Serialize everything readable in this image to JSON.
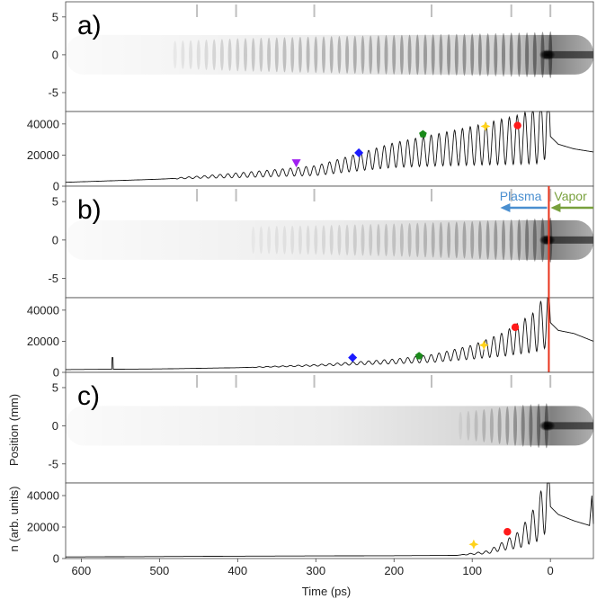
{
  "chart_data": {
    "type": "line",
    "x_label": "Time (ps)",
    "x_ticks": [
      600,
      500,
      400,
      300,
      200,
      100,
      0
    ],
    "xlim": [
      620,
      -55
    ],
    "image_y_label": "Position (mm)",
    "image_y_ticks": [
      "5",
      "0",
      "-5"
    ],
    "image_ylim": [
      7,
      -7.5
    ],
    "density_y_label": "n (arb. units)",
    "density_y_ticks": [
      "40000",
      "20000",
      "0"
    ],
    "density_ylim": [
      0,
      48000
    ],
    "panels": [
      {
        "label": "a)",
        "oscillation": {
          "start": 480,
          "period": 10,
          "env_t": [
            500,
            400,
            300,
            200,
            100,
            20,
            0
          ],
          "env_a": [
            0.04,
            0.22,
            0.32,
            0.4,
            0.48,
            0.55,
            0.6
          ]
        },
        "baseline": [
          [
            620,
            2500
          ],
          [
            500,
            4500
          ],
          [
            400,
            7000
          ],
          [
            300,
            10000
          ],
          [
            200,
            20000
          ],
          [
            100,
            26000
          ],
          [
            40,
            30000
          ],
          [
            15,
            33000
          ],
          [
            5,
            43000
          ],
          [
            0,
            32000
          ],
          [
            -10,
            27000
          ],
          [
            -30,
            24000
          ],
          [
            -55,
            22000
          ]
        ],
        "markers": [
          {
            "t": 325,
            "n": 15000,
            "shape": "triangle-down",
            "color": "#a020f0"
          },
          {
            "t": 245,
            "n": 21500,
            "shape": "diamond",
            "color": "#1a1aff"
          },
          {
            "t": 163,
            "n": 33500,
            "shape": "pentagon",
            "color": "#1a8a1a"
          },
          {
            "t": 83,
            "n": 38500,
            "shape": "star",
            "color": "#ffd21a"
          },
          {
            "t": 42,
            "n": 39000,
            "shape": "circle",
            "color": "#ff1a1a"
          }
        ]
      },
      {
        "label": "b)",
        "oscillation": {
          "start": 380,
          "period": 10,
          "env_t": [
            400,
            300,
            200,
            100,
            20,
            0
          ],
          "env_a": [
            0.05,
            0.12,
            0.22,
            0.35,
            0.5,
            0.55
          ]
        },
        "baseline": [
          [
            620,
            1800
          ],
          [
            500,
            2200
          ],
          [
            400,
            3000
          ],
          [
            300,
            4500
          ],
          [
            200,
            7000
          ],
          [
            150,
            9000
          ],
          [
            100,
            13000
          ],
          [
            60,
            18000
          ],
          [
            20,
            26000
          ],
          [
            5,
            34000
          ],
          [
            0,
            32000
          ],
          [
            -10,
            27000
          ],
          [
            -30,
            25000
          ],
          [
            -55,
            20000
          ]
        ],
        "spikes": [
          [
            560,
            9500
          ],
          [
            400,
            2500
          ]
        ],
        "markers": [
          {
            "t": 253,
            "n": 9500,
            "shape": "diamond",
            "color": "#1a1aff"
          },
          {
            "t": 168,
            "n": 10500,
            "shape": "pentagon",
            "color": "#1a8a1a"
          },
          {
            "t": 85,
            "n": 17500,
            "shape": "star",
            "color": "#ffd21a"
          },
          {
            "t": 45,
            "n": 29000,
            "shape": "circle",
            "color": "#ff1a1a"
          }
        ],
        "divider": {
          "t": 2,
          "color": "#e8321a"
        },
        "annotations": [
          {
            "text": "Plasma",
            "color": "#4a8fd0",
            "direction": "left"
          },
          {
            "text": "Vapor",
            "color": "#78a03c",
            "direction": "right"
          }
        ]
      },
      {
        "label": "c)",
        "oscillation": {
          "start": 115,
          "period": 10,
          "env_t": [
            120,
            80,
            40,
            10,
            0
          ],
          "env_a": [
            0.05,
            0.25,
            0.45,
            0.55,
            0.55
          ]
        },
        "baseline": [
          [
            620,
            1000
          ],
          [
            400,
            1500
          ],
          [
            200,
            1800
          ],
          [
            120,
            2000
          ],
          [
            80,
            4000
          ],
          [
            40,
            12000
          ],
          [
            15,
            24000
          ],
          [
            5,
            38000
          ],
          [
            0,
            33000
          ],
          [
            -10,
            28000
          ],
          [
            -30,
            24000
          ],
          [
            -50,
            21000
          ],
          [
            -53,
            40000
          ],
          [
            -55,
            22000
          ]
        ],
        "markers": [
          {
            "t": 98,
            "n": 9000,
            "shape": "star",
            "color": "#ffd21a"
          },
          {
            "t": 55,
            "n": 17000,
            "shape": "circle",
            "color": "#ff1a1a"
          }
        ]
      }
    ]
  }
}
